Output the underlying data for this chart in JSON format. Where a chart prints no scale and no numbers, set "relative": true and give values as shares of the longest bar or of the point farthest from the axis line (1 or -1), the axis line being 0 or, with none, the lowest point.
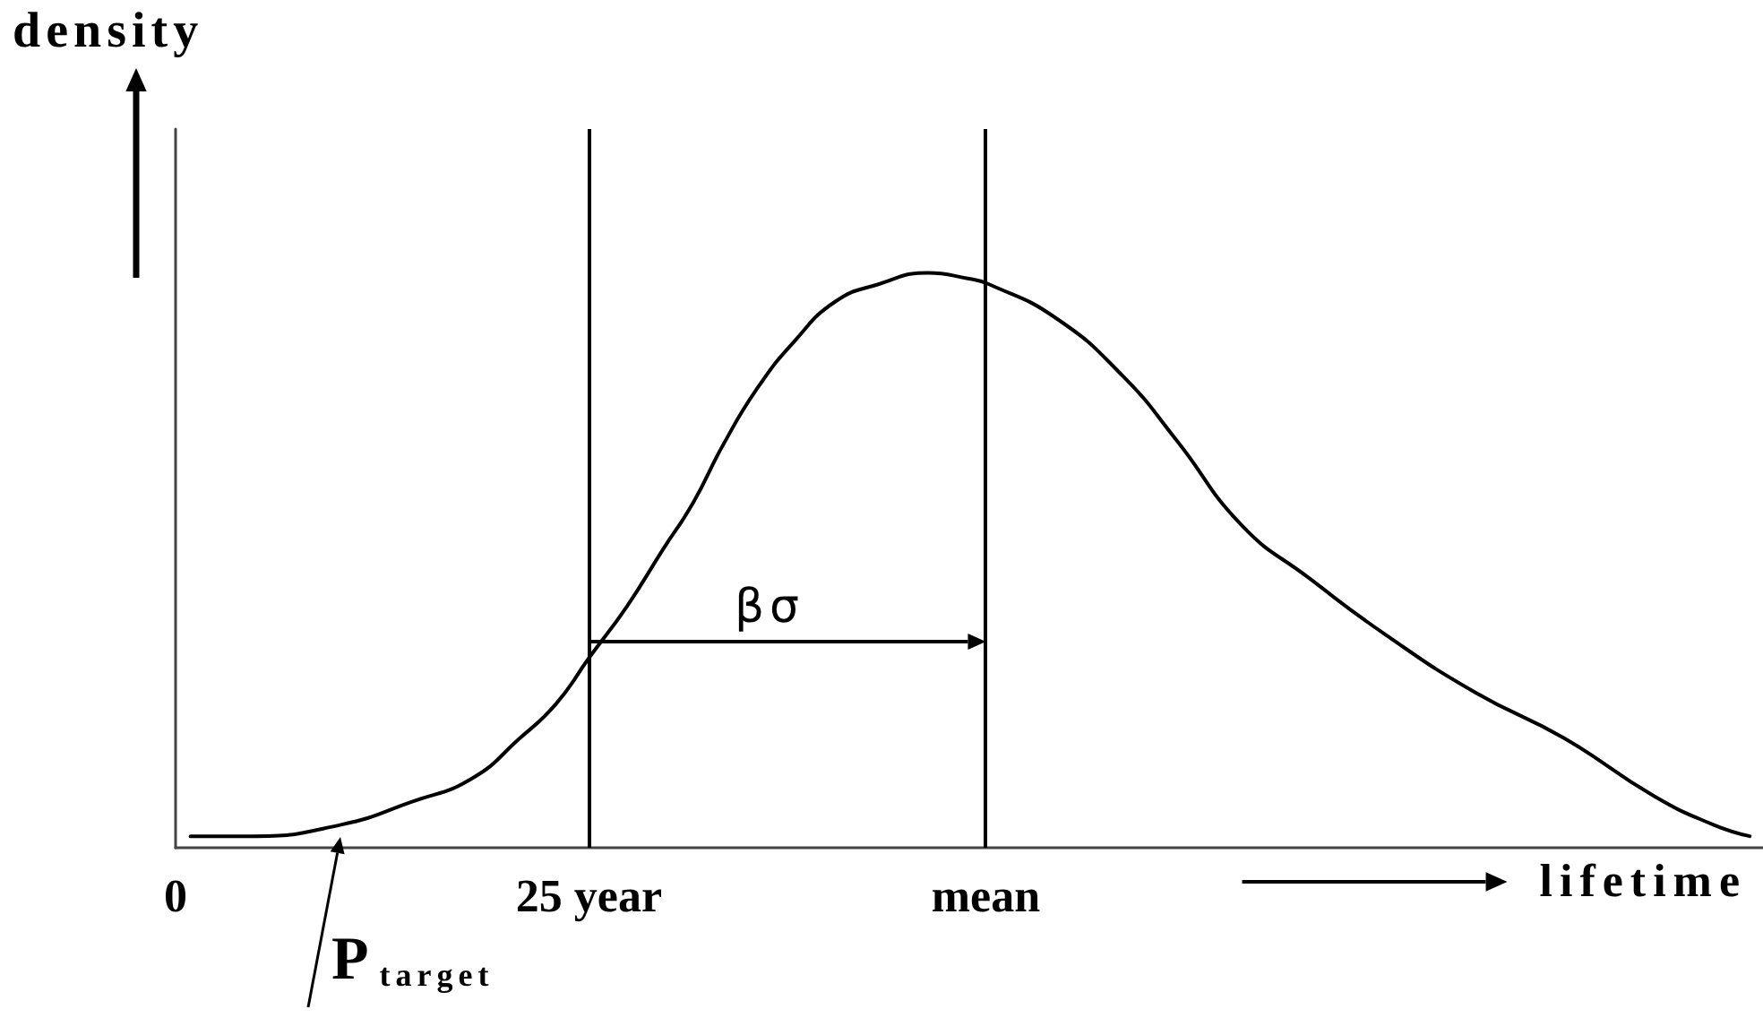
{
  "chart_data": {
    "type": "line",
    "relative": true,
    "xlabel": "lifetime",
    "ylabel": "density",
    "xlim": [
      0,
      96
    ],
    "xticks": [
      0,
      {
        "value": 25,
        "label": "25 year"
      },
      {
        "value": 49,
        "label": "mean"
      }
    ],
    "x": [
      0.9,
      4.5,
      10,
      14.3,
      17.9,
      20.8,
      23,
      25,
      27.3,
      29.5,
      31.3,
      33.1,
      35.2,
      37.4,
      39.9,
      42.5,
      45.5,
      47.9,
      49.2,
      53.3,
      57.3,
      60.5,
      64.5,
      68.5,
      73.2,
      78.6,
      84,
      89.4,
      93,
      95.2
    ],
    "values": [
      0.02,
      0.02,
      0.04,
      0.08,
      0.12,
      0.19,
      0.25,
      0.33,
      0.42,
      0.52,
      0.6,
      0.7,
      0.8,
      0.88,
      0.95,
      0.98,
      1,
      0.99,
      0.98,
      0.92,
      0.82,
      0.71,
      0.56,
      0.47,
      0.37,
      0.27,
      0.19,
      0.09,
      0.04,
      0.02
    ],
    "color": "#000000",
    "marker": "none",
    "line_style": "solid",
    "ref_lines": [
      {
        "axis": "x",
        "value": 25
      },
      {
        "axis": "x",
        "value": 49
      }
    ],
    "annotations": [
      "βσ",
      "P$_{target}$"
    ]
  }
}
